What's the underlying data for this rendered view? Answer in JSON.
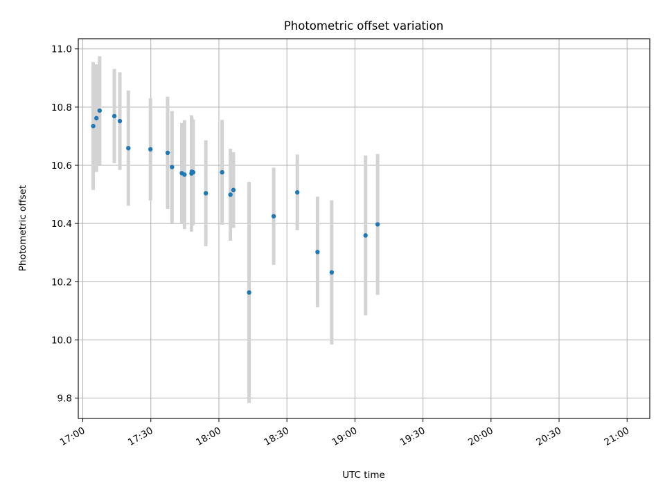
{
  "chart_data": {
    "type": "scatter",
    "title": "Photometric offset variation",
    "xlabel": "UTC time",
    "ylabel": "Photometric offset",
    "x_ticks": [
      "17:00",
      "17:30",
      "18:00",
      "18:30",
      "19:00",
      "19:30",
      "20:00",
      "20:30",
      "21:00"
    ],
    "y_ticks": [
      "9.8",
      "10.0",
      "10.2",
      "10.4",
      "10.6",
      "10.8",
      "11.0"
    ],
    "xlim": [
      "16:58",
      "21:10"
    ],
    "ylim": [
      9.73,
      11.035
    ],
    "grid": true,
    "colors": {
      "points": "#1f77b4",
      "error_bars": "#d3d3d3",
      "grid": "#b0b0b0"
    },
    "series": [
      {
        "points": [
          {
            "time": "17:04:35",
            "y": 10.735,
            "err": 0.22
          },
          {
            "time": "17:06:00",
            "y": 10.762,
            "err": 0.185
          },
          {
            "time": "17:07:25",
            "y": 10.788,
            "err": 0.187
          },
          {
            "time": "17:13:55",
            "y": 10.769,
            "err": 0.162
          },
          {
            "time": "17:16:20",
            "y": 10.752,
            "err": 0.168
          },
          {
            "time": "17:20:05",
            "y": 10.659,
            "err": 0.198
          },
          {
            "time": "17:29:50",
            "y": 10.655,
            "err": 0.176
          },
          {
            "time": "17:37:25",
            "y": 10.643,
            "err": 0.193
          },
          {
            "time": "17:39:20",
            "y": 10.594,
            "err": 0.193
          },
          {
            "time": "17:43:40",
            "y": 10.573,
            "err": 0.172
          },
          {
            "time": "17:44:50",
            "y": 10.568,
            "err": 0.187
          },
          {
            "time": "17:47:55",
            "y": 10.572,
            "err": 0.2
          },
          {
            "time": "17:48:05",
            "y": 10.578,
            "err": 0.187
          },
          {
            "time": "17:48:40",
            "y": 10.576,
            "err": 0.181
          },
          {
            "time": "17:54:15",
            "y": 10.504,
            "err": 0.182
          },
          {
            "time": "18:01:25",
            "y": 10.576,
            "err": 0.18
          },
          {
            "time": "18:05:05",
            "y": 10.499,
            "err": 0.158
          },
          {
            "time": "18:06:25",
            "y": 10.515,
            "err": 0.13
          },
          {
            "time": "18:13:20",
            "y": 10.163,
            "err": 0.38
          },
          {
            "time": "18:24:10",
            "y": 10.425,
            "err": 0.167
          },
          {
            "time": "18:34:35",
            "y": 10.507,
            "err": 0.13
          },
          {
            "time": "18:43:30",
            "y": 10.302,
            "err": 0.19
          },
          {
            "time": "18:49:45",
            "y": 10.232,
            "err": 0.248
          },
          {
            "time": "19:04:40",
            "y": 10.359,
            "err": 0.275
          },
          {
            "time": "19:10:00",
            "y": 10.397,
            "err": 0.242
          }
        ]
      }
    ]
  }
}
